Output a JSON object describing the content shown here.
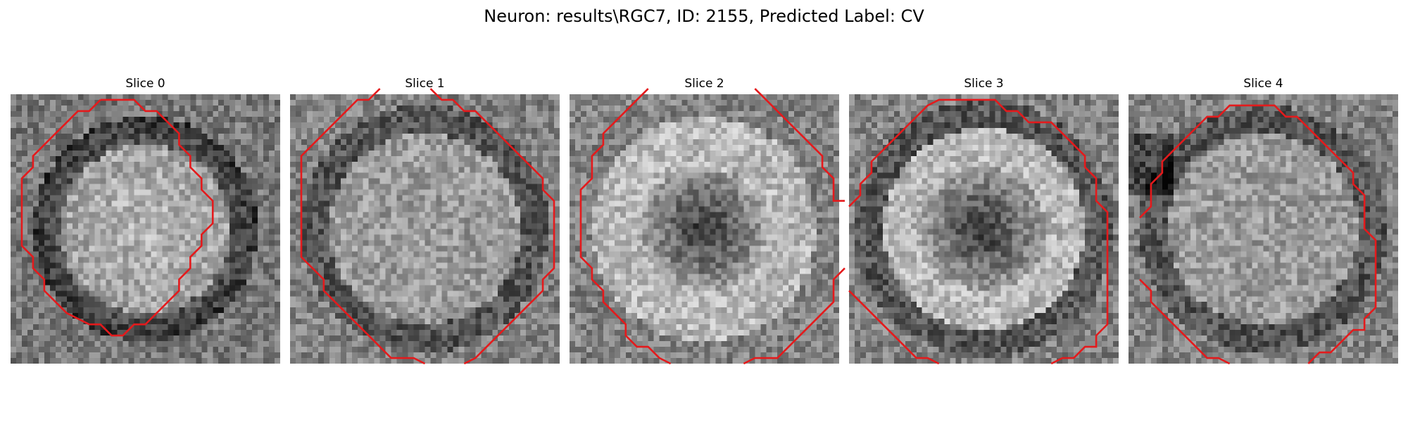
{
  "title": "Neuron: results\\RGC7, ID: 2155, Predicted Label: CV",
  "contour_color": "#e41a1c",
  "panels": [
    {
      "label": "Slice 0",
      "image": {
        "type": "grayscale-ring",
        "center_brightness": "bright",
        "ring": "dark"
      },
      "contours": [
        [
          [
            16,
            1
          ],
          [
            22,
            1
          ],
          [
            24,
            3
          ],
          [
            26,
            3
          ],
          [
            28,
            5
          ],
          [
            30,
            7
          ],
          [
            30,
            9
          ],
          [
            32,
            11
          ],
          [
            32,
            13
          ],
          [
            34,
            15
          ],
          [
            34,
            17
          ],
          [
            36,
            19
          ],
          [
            36,
            23
          ],
          [
            34,
            25
          ],
          [
            34,
            27
          ],
          [
            32,
            29
          ],
          [
            32,
            31
          ],
          [
            30,
            33
          ],
          [
            30,
            35
          ],
          [
            28,
            37
          ],
          [
            26,
            39
          ],
          [
            24,
            41
          ],
          [
            22,
            41
          ],
          [
            20,
            43
          ],
          [
            18,
            43
          ],
          [
            16,
            41
          ],
          [
            14,
            41
          ],
          [
            10,
            39
          ],
          [
            8,
            37
          ],
          [
            6,
            35
          ],
          [
            6,
            33
          ],
          [
            4,
            31
          ],
          [
            4,
            29
          ],
          [
            2,
            27
          ],
          [
            2,
            21
          ],
          [
            2,
            15
          ],
          [
            4,
            13
          ],
          [
            4,
            11
          ],
          [
            6,
            9
          ],
          [
            8,
            7
          ],
          [
            10,
            5
          ],
          [
            12,
            3
          ],
          [
            14,
            3
          ],
          [
            16,
            1
          ]
        ]
      ]
    },
    {
      "label": "Slice 1",
      "image": {
        "type": "grayscale-ring",
        "center_brightness": "medium",
        "ring": "dark"
      },
      "contours": [
        [
          [
            16,
            -1
          ],
          [
            14,
            1
          ],
          [
            12,
            1
          ],
          [
            10,
            3
          ],
          [
            8,
            5
          ],
          [
            6,
            7
          ],
          [
            4,
            9
          ],
          [
            2,
            11
          ],
          [
            2,
            13
          ],
          [
            2,
            15
          ],
          [
            2,
            19
          ],
          [
            2,
            25
          ],
          [
            2,
            29
          ],
          [
            4,
            31
          ],
          [
            6,
            33
          ],
          [
            6,
            35
          ],
          [
            8,
            37
          ],
          [
            10,
            39
          ],
          [
            12,
            41
          ],
          [
            14,
            43
          ],
          [
            16,
            45
          ],
          [
            18,
            47
          ],
          [
            20,
            47
          ],
          [
            22,
            47
          ],
          [
            24,
            48
          ]
        ],
        [
          [
            25,
            -1
          ],
          [
            27,
            1
          ],
          [
            29,
            1
          ],
          [
            31,
            3
          ],
          [
            33,
            3
          ],
          [
            35,
            5
          ],
          [
            37,
            7
          ],
          [
            39,
            9
          ],
          [
            41,
            11
          ],
          [
            43,
            13
          ],
          [
            45,
            15
          ],
          [
            45,
            17
          ],
          [
            47,
            19
          ],
          [
            47,
            23
          ],
          [
            47,
            27
          ],
          [
            47,
            31
          ],
          [
            45,
            33
          ],
          [
            45,
            35
          ],
          [
            43,
            37
          ],
          [
            41,
            39
          ],
          [
            39,
            41
          ],
          [
            37,
            43
          ],
          [
            35,
            45
          ],
          [
            33,
            47
          ],
          [
            31,
            48
          ]
        ]
      ]
    },
    {
      "label": "Slice 2",
      "image": {
        "type": "grayscale-ring",
        "center_brightness": "dark",
        "ring": "bright"
      },
      "contours": [
        [
          [
            14,
            -1
          ],
          [
            12,
            1
          ],
          [
            10,
            3
          ],
          [
            8,
            5
          ],
          [
            6,
            7
          ],
          [
            6,
            9
          ],
          [
            4,
            11
          ],
          [
            4,
            13
          ],
          [
            4,
            15
          ],
          [
            2,
            17
          ],
          [
            2,
            21
          ],
          [
            2,
            25
          ],
          [
            2,
            29
          ],
          [
            4,
            31
          ],
          [
            4,
            33
          ],
          [
            6,
            35
          ],
          [
            6,
            37
          ],
          [
            8,
            39
          ],
          [
            10,
            41
          ],
          [
            10,
            43
          ],
          [
            12,
            45
          ],
          [
            14,
            45
          ],
          [
            16,
            47
          ],
          [
            18,
            48
          ]
        ],
        [
          [
            33,
            -1
          ],
          [
            35,
            1
          ],
          [
            37,
            3
          ],
          [
            39,
            5
          ],
          [
            41,
            7
          ],
          [
            43,
            9
          ],
          [
            45,
            11
          ],
          [
            45,
            13
          ],
          [
            47,
            15
          ],
          [
            47,
            17
          ],
          [
            47,
            19
          ],
          [
            49,
            19
          ],
          [
            48,
            19
          ]
        ],
        [
          [
            49,
            31
          ],
          [
            47,
            33
          ],
          [
            47,
            37
          ],
          [
            45,
            39
          ],
          [
            43,
            41
          ],
          [
            41,
            43
          ],
          [
            39,
            45
          ],
          [
            37,
            47
          ],
          [
            35,
            47
          ],
          [
            33,
            47
          ],
          [
            31,
            48
          ]
        ]
      ]
    },
    {
      "label": "Slice 3",
      "image": {
        "type": "grayscale-ring",
        "center_brightness": "dark",
        "ring": "medium"
      },
      "contours": [
        [
          [
            0,
            20
          ],
          [
            2,
            18
          ],
          [
            2,
            16
          ],
          [
            4,
            14
          ],
          [
            4,
            12
          ],
          [
            6,
            10
          ],
          [
            8,
            8
          ],
          [
            10,
            6
          ],
          [
            12,
            4
          ],
          [
            14,
            2
          ],
          [
            16,
            1
          ],
          [
            22,
            1
          ],
          [
            26,
            1
          ],
          [
            28,
            3
          ],
          [
            30,
            3
          ],
          [
            32,
            5
          ],
          [
            34,
            5
          ],
          [
            36,
            5
          ],
          [
            38,
            7
          ],
          [
            40,
            9
          ],
          [
            42,
            11
          ],
          [
            42,
            13
          ],
          [
            44,
            15
          ],
          [
            44,
            17
          ],
          [
            44,
            19
          ],
          [
            46,
            21
          ],
          [
            46,
            25
          ],
          [
            46,
            29
          ],
          [
            46,
            33
          ],
          [
            46,
            37
          ],
          [
            46,
            41
          ],
          [
            44,
            43
          ],
          [
            44,
            45
          ],
          [
            42,
            45
          ],
          [
            40,
            47
          ],
          [
            38,
            47
          ],
          [
            36,
            48
          ]
        ],
        [
          [
            0,
            35
          ],
          [
            2,
            37
          ],
          [
            4,
            39
          ],
          [
            6,
            41
          ],
          [
            8,
            43
          ],
          [
            10,
            45
          ],
          [
            12,
            47
          ],
          [
            14,
            47
          ],
          [
            16,
            48
          ]
        ]
      ]
    },
    {
      "label": "Slice 4",
      "image": {
        "type": "grayscale-ring",
        "center_brightness": "medium",
        "ring": "dark-left"
      },
      "contours": [
        [
          [
            2,
            22
          ],
          [
            4,
            20
          ],
          [
            4,
            16
          ],
          [
            6,
            14
          ],
          [
            6,
            12
          ],
          [
            8,
            10
          ],
          [
            10,
            8
          ],
          [
            12,
            6
          ],
          [
            14,
            4
          ],
          [
            16,
            4
          ],
          [
            18,
            2
          ],
          [
            22,
            2
          ],
          [
            26,
            2
          ],
          [
            28,
            4
          ],
          [
            30,
            4
          ],
          [
            32,
            6
          ],
          [
            34,
            8
          ],
          [
            36,
            10
          ],
          [
            38,
            12
          ],
          [
            40,
            14
          ],
          [
            40,
            16
          ],
          [
            42,
            18
          ],
          [
            42,
            24
          ],
          [
            44,
            26
          ],
          [
            44,
            30
          ],
          [
            44,
            34
          ],
          [
            44,
            38
          ],
          [
            42,
            40
          ],
          [
            42,
            42
          ],
          [
            40,
            42
          ],
          [
            38,
            44
          ],
          [
            36,
            46
          ],
          [
            34,
            46
          ],
          [
            32,
            48
          ]
        ],
        [
          [
            2,
            33
          ],
          [
            4,
            35
          ],
          [
            4,
            37
          ],
          [
            6,
            39
          ],
          [
            8,
            41
          ],
          [
            10,
            43
          ],
          [
            12,
            45
          ],
          [
            14,
            47
          ],
          [
            16,
            47
          ],
          [
            18,
            48
          ]
        ]
      ]
    }
  ]
}
